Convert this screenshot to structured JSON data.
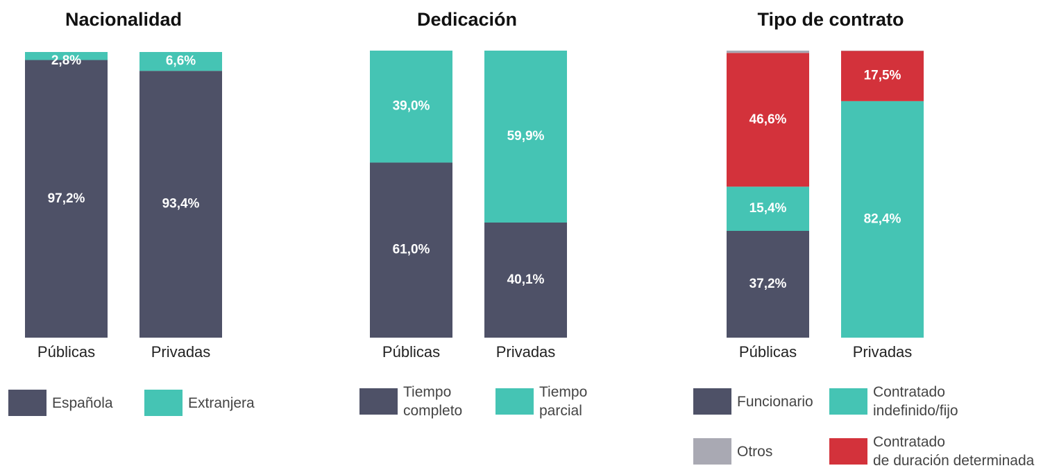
{
  "chart_data": [
    {
      "type": "bar",
      "stacked": true,
      "title": "Nacionalidad",
      "categories": [
        "Públicas",
        "Privadas"
      ],
      "ylim": [
        0,
        100
      ],
      "series": [
        {
          "name": "Española",
          "color": "#4e5167",
          "values": [
            97.2,
            93.4
          ],
          "value_labels": [
            "97,2%",
            "93,4%"
          ]
        },
        {
          "name": "Extranjera",
          "color": "#45c4b4",
          "values": [
            2.8,
            6.6
          ],
          "value_labels": [
            "2,8%",
            "6,6%"
          ]
        }
      ]
    },
    {
      "type": "bar",
      "stacked": true,
      "title": "Dedicación",
      "categories": [
        "Públicas",
        "Privadas"
      ],
      "ylim": [
        0,
        100
      ],
      "series": [
        {
          "name": "Tiempo\ncompleto",
          "color": "#4e5167",
          "values": [
            61.0,
            40.1
          ],
          "value_labels": [
            "61,0%",
            "40,1%"
          ]
        },
        {
          "name": "Tiempo\nparcial",
          "color": "#45c4b4",
          "values": [
            39.0,
            59.9
          ],
          "value_labels": [
            "39,0%",
            "59,9%"
          ]
        }
      ]
    },
    {
      "type": "bar",
      "stacked": true,
      "title": "Tipo de contrato",
      "categories": [
        "Públicas",
        "Privadas"
      ],
      "ylim": [
        0,
        100
      ],
      "series": [
        {
          "name": "Funcionario",
          "color": "#4e5167",
          "values": [
            37.2,
            0
          ],
          "value_labels": [
            "37,2%",
            null
          ]
        },
        {
          "name": "Contratado\nindefinido/fijo",
          "color": "#45c4b4",
          "values": [
            15.4,
            82.4
          ],
          "value_labels": [
            "15,4%",
            "82,4%"
          ]
        },
        {
          "name": "Contratado\nde duración determinada",
          "color": "#d3323b",
          "values": [
            46.6,
            17.5
          ],
          "value_labels": [
            "46,6%",
            "17,5%"
          ]
        },
        {
          "name": "Otros",
          "color": "#a9a9b3",
          "values": [
            0.8,
            0.1
          ],
          "value_labels": [
            null,
            null
          ]
        }
      ]
    }
  ]
}
